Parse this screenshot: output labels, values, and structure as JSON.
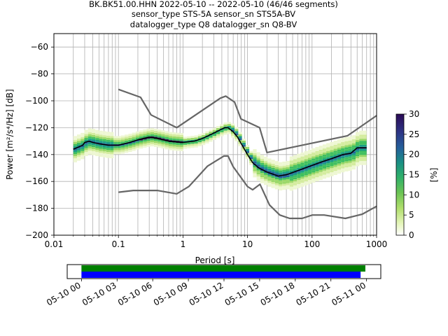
{
  "title": {
    "line1": "BK.BK51.00.HHN   2022-05-10 -- 2022-05-10  (46/46 segments)",
    "line2": "sensor_type STS-5A sensor_sn STS5A-BV",
    "line3": "datalogger_type Q8 datalogger_sn Q8-BV"
  },
  "colors": {
    "mean": "#000000",
    "noise_models": "#666666",
    "grid": "#b0b0b0",
    "bar_green": "#008000",
    "bar_blue": "#0000ff"
  },
  "chart_data": [
    {
      "type": "line",
      "title": "",
      "xlabel": "Period [s]",
      "ylabel": "Power [m²/s⁴/Hz] [dB]",
      "xscale": "log",
      "xlim": [
        0.01,
        1000
      ],
      "ylim": [
        -200,
        -50
      ],
      "grid": true,
      "x_ticks": [
        {
          "value": 0.01,
          "label": "0.01"
        },
        {
          "value": 0.1,
          "label": "0.1"
        },
        {
          "value": 1,
          "label": "1"
        },
        {
          "value": 10,
          "label": "10"
        },
        {
          "value": 100,
          "label": "100"
        },
        {
          "value": 1000,
          "label": "1000"
        }
      ],
      "y_ticks": [
        -60,
        -80,
        -100,
        -120,
        -140,
        -160,
        -180,
        -200
      ],
      "series": [
        {
          "style": "mean",
          "x": [
            0.02,
            0.025,
            0.028,
            0.03,
            0.035,
            0.04,
            0.05,
            0.07,
            0.1,
            0.15,
            0.2,
            0.3,
            0.4,
            0.6,
            1,
            1.5,
            2,
            3,
            4,
            4.5,
            5,
            6,
            7,
            8,
            10,
            12,
            15,
            20,
            30,
            40,
            60,
            100,
            150,
            200,
            300,
            400,
            500,
            700
          ],
          "y": [
            -136,
            -134,
            -133,
            -131,
            -130,
            -131,
            -132,
            -133,
            -133,
            -131,
            -129,
            -127,
            -128,
            -130,
            -131,
            -130,
            -128,
            -124,
            -121,
            -120,
            -120,
            -123,
            -127,
            -132,
            -140,
            -146,
            -150,
            -153,
            -156,
            -155,
            -152,
            -148,
            -145,
            -143,
            -140,
            -139,
            -135,
            -135
          ]
        },
        {
          "style": "high-noise-model",
          "x": [
            0.1,
            0.22,
            0.32,
            0.8,
            3.8,
            4.6,
            6.3,
            7.9,
            15.4,
            20,
            354.8,
            1000
          ],
          "y": [
            -91.5,
            -97.4,
            -110.5,
            -120,
            -98,
            -96.5,
            -101,
            -113.5,
            -120,
            -138.5,
            -126,
            -111
          ]
        },
        {
          "style": "low-noise-model",
          "x": [
            0.1,
            0.17,
            0.4,
            0.8,
            1.24,
            2.4,
            4.3,
            5,
            6,
            10,
            12,
            15.6,
            21.9,
            31.6,
            45,
            70,
            101,
            154,
            328,
            600,
            1000
          ],
          "y": [
            -168,
            -166.7,
            -166.7,
            -169.2,
            -163.7,
            -148.6,
            -141.1,
            -141.1,
            -149,
            -163.8,
            -166.2,
            -162.1,
            -177.5,
            -185,
            -187.5,
            -187.5,
            -185,
            -185,
            -187.5,
            -184.4,
            -178.5
          ]
        }
      ],
      "histogram": {
        "type": "heatmap",
        "colorbar_label": "[%]",
        "colorbar_range": [
          0,
          30
        ],
        "colorbar_ticks": [
          0,
          5,
          10,
          15,
          20,
          25,
          30
        ]
      }
    },
    {
      "type": "bar",
      "description_free": true,
      "x_tick_labels": [
        "05-10 00",
        "05-10 03",
        "05-10 06",
        "05-10 09",
        "05-10 12",
        "05-10 15",
        "05-10 18",
        "05-10 21",
        "05-11 00"
      ],
      "x_tick_hours": [
        0,
        3,
        6,
        9,
        12,
        15,
        18,
        21,
        24
      ],
      "xlim_hours": [
        -1.2,
        25.2
      ],
      "bars": [
        {
          "start_hour": 0,
          "end_hour": 23.9,
          "color": "#008000"
        },
        {
          "start_hour": 0,
          "end_hour": 23.5,
          "color": "#0000ff"
        }
      ]
    }
  ]
}
